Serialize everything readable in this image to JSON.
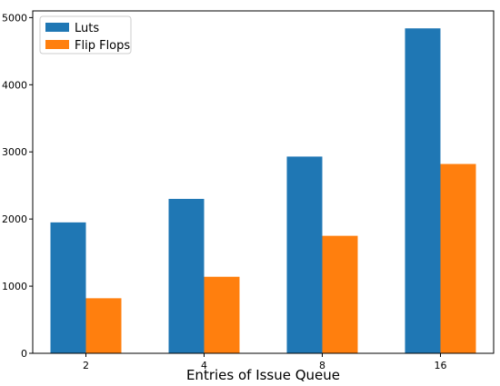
{
  "chart_data": {
    "type": "bar",
    "title": "",
    "xlabel": "Entries of Issue Queue",
    "ylabel": "",
    "categories": [
      "2",
      "4",
      "8",
      "16"
    ],
    "series": [
      {
        "name": "Luts",
        "values": [
          1950,
          2300,
          2930,
          4840
        ],
        "color": "#1f77b4"
      },
      {
        "name": "Flip Flops",
        "values": [
          820,
          1140,
          1750,
          2820
        ],
        "color": "#ff7f0e"
      }
    ],
    "ylim": [
      0,
      5100
    ],
    "yticks": [
      0,
      1000,
      2000,
      3000,
      4000,
      5000
    ],
    "grid": false,
    "legend_position": "top-left"
  }
}
